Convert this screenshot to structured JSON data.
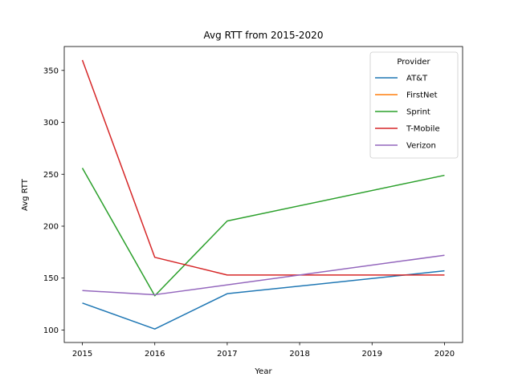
{
  "chart_data": {
    "type": "line",
    "title": "Avg RTT from 2015-2020",
    "xlabel": "Year",
    "ylabel": "Avg RTT",
    "x": [
      2015,
      2016,
      2017,
      2018,
      2019,
      2020
    ],
    "xticks": [
      "2015",
      "2016",
      "2017",
      "2018",
      "2019",
      "2020"
    ],
    "yticks": [
      "100",
      "150",
      "200",
      "250",
      "300",
      "350"
    ],
    "xlim": [
      2014.75,
      2020.25
    ],
    "ylim": [
      88,
      373
    ],
    "grid": false,
    "legend": {
      "title": "Provider",
      "position": "top-right"
    },
    "series": [
      {
        "name": "AT&T",
        "color": "#1f77b4",
        "values": [
          126,
          101,
          135,
          null,
          null,
          157
        ]
      },
      {
        "name": "FirstNet",
        "color": "#ff7f0e",
        "values": [
          null,
          null,
          null,
          null,
          null,
          null
        ]
      },
      {
        "name": "Sprint",
        "color": "#2ca02c",
        "values": [
          256,
          133,
          205,
          null,
          null,
          249
        ]
      },
      {
        "name": "T-Mobile",
        "color": "#d62728",
        "values": [
          360,
          170,
          153,
          null,
          null,
          153
        ]
      },
      {
        "name": "Verizon",
        "color": "#9467bd",
        "values": [
          138,
          134,
          null,
          null,
          null,
          172
        ]
      }
    ]
  }
}
